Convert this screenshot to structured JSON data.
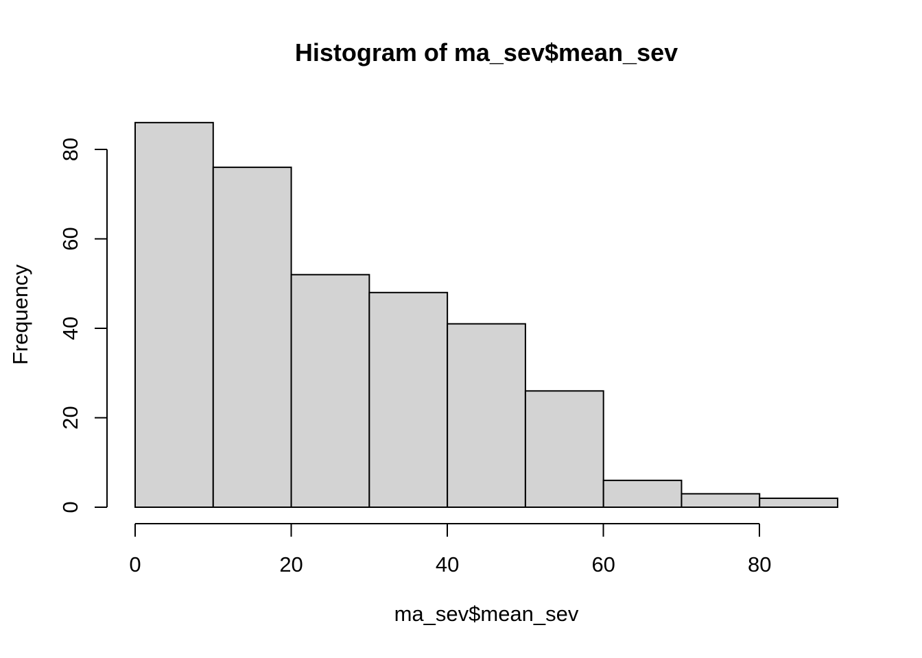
{
  "figure": {
    "title": "Histogram of ma_sev$mean_sev",
    "xlabel": "ma_sev$mean_sev",
    "ylabel": "Frequency"
  },
  "chart_data": {
    "type": "bar",
    "subtype": "histogram",
    "title": "Histogram of ma_sev$mean_sev",
    "xlabel": "ma_sev$mean_sev",
    "ylabel": "Frequency",
    "breaks": [
      0,
      10,
      20,
      30,
      40,
      50,
      60,
      70,
      80,
      90
    ],
    "counts": [
      86,
      76,
      52,
      48,
      41,
      26,
      6,
      3,
      2
    ],
    "x_ticks": [
      0,
      20,
      40,
      60,
      80
    ],
    "y_ticks": [
      0,
      20,
      40,
      60,
      80
    ],
    "xlim": [
      0,
      90
    ],
    "ylim": [
      0,
      86
    ],
    "x_axis_range": [
      0,
      80
    ],
    "y_axis_range": [
      0,
      80
    ],
    "grid": false,
    "legend_position": "none",
    "colors": {
      "bar_fill": "#d3d3d3",
      "bar_stroke": "#000000",
      "axis": "#000000",
      "text": "#000000",
      "background": "#ffffff"
    }
  }
}
